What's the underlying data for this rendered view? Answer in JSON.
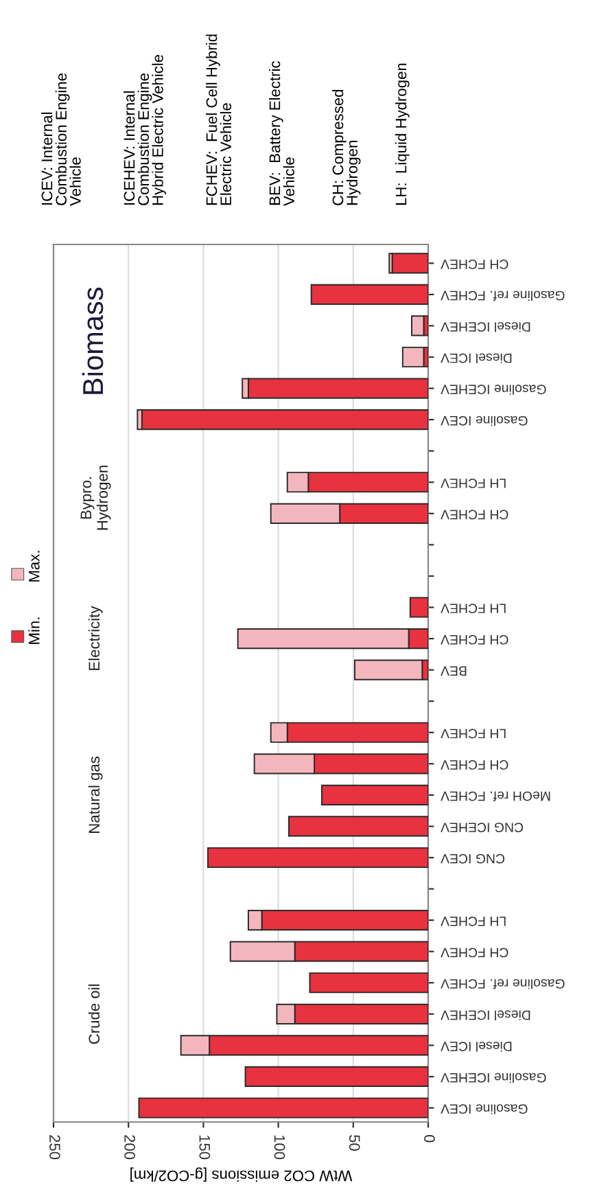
{
  "chart_data": {
    "type": "bar",
    "orientation": "horizontal",
    "stacked": true,
    "xlabel": "WtW CO2 emissions [g-CO2/km]",
    "categories": [
      "CH FCHEV",
      "Gasoline ref. FCHEV",
      "Diesel ICEHEV",
      "Diesel ICEV",
      "Gasoline ICEHEV",
      "Gasoline ICEV",
      null,
      "LH FCHEV",
      "CH FCHEV",
      null,
      null,
      "LH FCHEV",
      "CH FCHEV",
      "BEV",
      null,
      "LH FCHEV",
      "CH FCHEV",
      "MeOH ref. FCHEV",
      "CNG ICEHEV",
      "CNG ICEV",
      null,
      "LH FCHEV",
      "CH FCHEV",
      "Gasoline ref. FCHEV",
      "Diesel ICEHEV",
      "Diesel ICEV",
      "Gasoline ICEHEV",
      "Gasoline ICEV"
    ],
    "series": [
      {
        "name": "Min.",
        "color": "#e8323f",
        "values": [
          24,
          78,
          3,
          3,
          120,
          191,
          null,
          80,
          59,
          null,
          null,
          12,
          13,
          4,
          null,
          94,
          76,
          71,
          93,
          147,
          null,
          111,
          89,
          79,
          89,
          146,
          122,
          193
        ]
      },
      {
        "name": "Max.",
        "color": "#f4b6bd",
        "values": [
          2,
          null,
          8,
          14,
          4,
          3,
          null,
          14,
          46,
          null,
          null,
          null,
          114,
          45,
          null,
          11,
          40,
          null,
          null,
          null,
          null,
          9,
          43,
          null,
          12,
          19,
          null,
          null
        ]
      }
    ],
    "xlim": [
      250,
      0
    ],
    "xticks": [
      0,
      50,
      100,
      150,
      200,
      250
    ],
    "grid": "x",
    "legend": "left",
    "annotations": [
      "Biomass",
      "Bypro.\nHydrogen",
      "Electricity",
      "Natural gas",
      "Crude oil",
      "ICEV: Internal\nCombustion Engine\nVehicle",
      "ICEHEV: Internal\nCombustion Engine\nHybrid Electric Vehicle",
      "FCHEV:  Fuel Cell Hybrid\nElectric Vehicle",
      "BEV:  Battery Electric\nVehicle",
      "CH: Compressed\nHydrogen",
      "LH:  Liquid Hydrogen"
    ]
  }
}
